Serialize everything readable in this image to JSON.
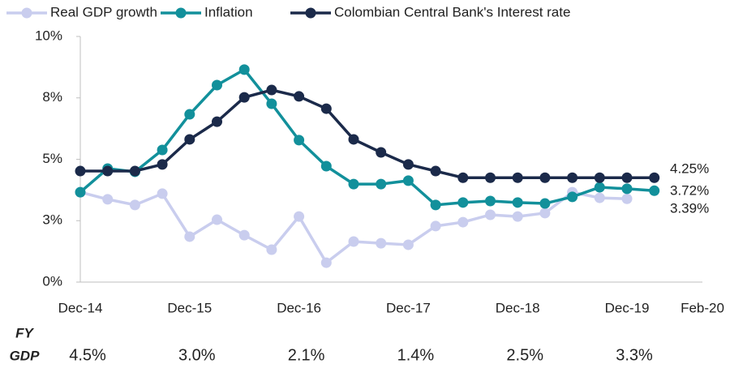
{
  "chart_data": {
    "type": "line",
    "categories": [
      "Dec-14",
      null,
      null,
      null,
      "Dec-15",
      null,
      null,
      null,
      "Dec-16",
      null,
      null,
      null,
      "Dec-17",
      null,
      null,
      null,
      "Dec-18",
      null,
      null,
      null,
      "Dec-19",
      null,
      "Feb-20"
    ],
    "series": [
      {
        "name": "Real GDP growth",
        "color": "#c9cdee",
        "end_label": "3.39%",
        "values": [
          3.66,
          3.37,
          3.14,
          3.6,
          1.85,
          2.54,
          1.91,
          1.32,
          2.67,
          0.79,
          1.65,
          1.58,
          1.52,
          2.28,
          2.44,
          2.74,
          2.67,
          2.81,
          3.66,
          3.43,
          3.39,
          null,
          null
        ]
      },
      {
        "name": "Inflation",
        "color": "#12909b",
        "end_label": "3.72%",
        "values": [
          3.66,
          4.62,
          4.49,
          5.38,
          6.83,
          8.02,
          8.65,
          7.26,
          5.78,
          4.72,
          3.99,
          3.99,
          4.13,
          3.14,
          3.24,
          3.3,
          3.24,
          3.2,
          3.47,
          3.86,
          3.8,
          3.72,
          null
        ]
      },
      {
        "name": "Colombian Central Bank's Interest rate",
        "color": "#1b2a4a",
        "end_label": "4.25%",
        "values": [
          4.52,
          4.52,
          4.52,
          4.79,
          5.81,
          6.53,
          7.52,
          7.82,
          7.56,
          7.06,
          5.81,
          5.28,
          4.79,
          4.52,
          4.25,
          4.25,
          4.25,
          4.25,
          4.25,
          4.25,
          4.25,
          4.25,
          null
        ]
      }
    ],
    "ylim": [
      0,
      10
    ],
    "yticks": [
      {
        "value": 0,
        "label": "0%"
      },
      {
        "value": 2.5,
        "label": "3%"
      },
      {
        "value": 5,
        "label": "5%"
      },
      {
        "value": 7.5,
        "label": "8%"
      },
      {
        "value": 10,
        "label": "10%"
      }
    ],
    "legend": "top",
    "fy_gdp": {
      "label_top": "FY",
      "label_bottom": "GDP",
      "values": [
        4.5,
        3.0,
        2.1,
        1.4,
        2.5,
        3.3
      ],
      "value_labels": [
        "4.5%",
        "3.0%",
        "2.1%",
        "1.4%",
        "2.5%",
        "3.3%"
      ]
    }
  }
}
